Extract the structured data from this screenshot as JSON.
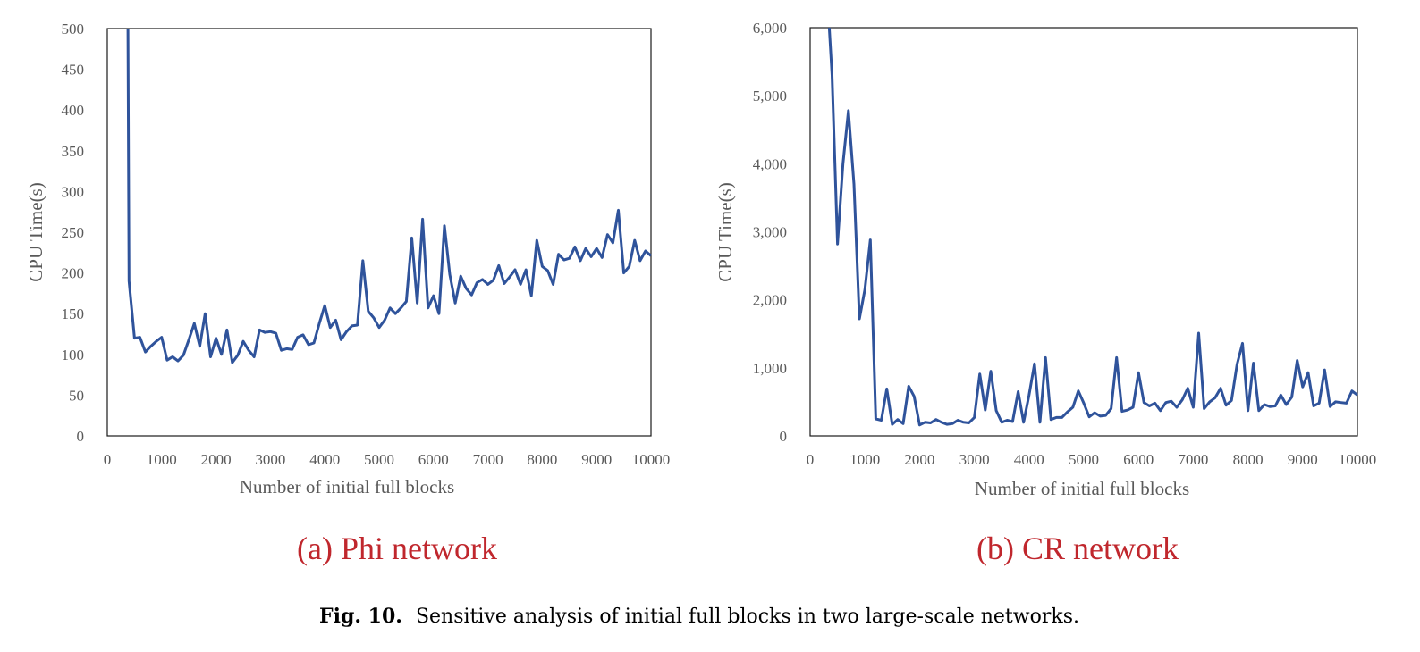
{
  "figure": {
    "caption_label": "Fig. 10.",
    "caption_text": "Sensitive analysis of initial full blocks in two large-scale networks.",
    "colors": {
      "line": "#2f539b",
      "subcaption": "#c0272d",
      "axis_text": "#595959",
      "frame": "#1a1a1a"
    }
  },
  "chart_data": [
    {
      "type": "line",
      "subcaption": "(a) Phi network",
      "xlabel": "Number of initial full blocks",
      "ylabel": "CPU Time(s)",
      "xlim": [
        0,
        10000
      ],
      "ylim": [
        0,
        500
      ],
      "x_ticks": [
        "0",
        "1000",
        "2000",
        "3000",
        "4000",
        "5000",
        "6000",
        "7000",
        "8000",
        "9000",
        "10000"
      ],
      "y_ticks": [
        "0",
        "50",
        "100",
        "150",
        "200",
        "250",
        "300",
        "350",
        "400",
        "450",
        "500"
      ],
      "grid": false,
      "series": [
        {
          "x": [
            380,
            400,
            500,
            600,
            700,
            800,
            900,
            1000,
            1100,
            1200,
            1300,
            1400,
            1500,
            1600,
            1700,
            1800,
            1900,
            2000,
            2100,
            2200,
            2300,
            2400,
            2500,
            2600,
            2700,
            2800,
            2900,
            3000,
            3100,
            3200,
            3300,
            3400,
            3500,
            3600,
            3700,
            3800,
            3900,
            4000,
            4100,
            4200,
            4300,
            4400,
            4500,
            4600,
            4700,
            4800,
            4900,
            5000,
            5100,
            5200,
            5300,
            5400,
            5500,
            5600,
            5700,
            5800,
            5900,
            6000,
            6100,
            6200,
            6300,
            6400,
            6500,
            6600,
            6700,
            6800,
            6900,
            7000,
            7100,
            7200,
            7300,
            7400,
            7500,
            7600,
            7700,
            7800,
            7900,
            8000,
            8100,
            8200,
            8300,
            8400,
            8500,
            8600,
            8700,
            8800,
            8900,
            9000,
            9100,
            9200,
            9300,
            9400,
            9500,
            9600,
            9700,
            9800,
            9900,
            10000
          ],
          "y": [
            500,
            190,
            120,
            121,
            103,
            110,
            116,
            121,
            93,
            97,
            92,
            99,
            118,
            138,
            110,
            150,
            97,
            120,
            100,
            130,
            90,
            99,
            116,
            105,
            97,
            130,
            127,
            128,
            126,
            105,
            107,
            106,
            121,
            124,
            112,
            114,
            138,
            160,
            133,
            142,
            118,
            128,
            135,
            136,
            215,
            153,
            145,
            133,
            142,
            157,
            150,
            157,
            165,
            243,
            163,
            266,
            157,
            172,
            150,
            258,
            198,
            163,
            196,
            181,
            173,
            188,
            192,
            186,
            191,
            209,
            187,
            195,
            204,
            186,
            204,
            172,
            240,
            208,
            203,
            186,
            223,
            216,
            218,
            232,
            215,
            230,
            220,
            230,
            219,
            247,
            237,
            277,
            200,
            208,
            240,
            215,
            227,
            221
          ]
        }
      ]
    },
    {
      "type": "line",
      "subcaption": "(b) CR network",
      "xlabel": "Number of initial full blocks",
      "ylabel": "CPU Time(s)",
      "xlim": [
        0,
        10000
      ],
      "ylim": [
        0,
        6000
      ],
      "x_ticks": [
        "0",
        "1000",
        "2000",
        "3000",
        "4000",
        "5000",
        "6000",
        "7000",
        "8000",
        "9000",
        "10000"
      ],
      "y_ticks": [
        "0",
        "1,000",
        "2,000",
        "3,000",
        "4,000",
        "5,000",
        "6,000"
      ],
      "grid": false,
      "series": [
        {
          "x": [
            350,
            400,
            500,
            600,
            700,
            800,
            900,
            1000,
            1100,
            1200,
            1300,
            1400,
            1500,
            1600,
            1700,
            1800,
            1900,
            2000,
            2100,
            2200,
            2300,
            2400,
            2500,
            2600,
            2700,
            2800,
            2900,
            3000,
            3100,
            3200,
            3300,
            3400,
            3500,
            3600,
            3700,
            3800,
            3900,
            4000,
            4100,
            4200,
            4300,
            4400,
            4500,
            4600,
            4700,
            4800,
            4900,
            5000,
            5100,
            5200,
            5300,
            5400,
            5500,
            5600,
            5700,
            5800,
            5900,
            6000,
            6100,
            6200,
            6300,
            6400,
            6500,
            6600,
            6700,
            6800,
            6900,
            7000,
            7100,
            7200,
            7300,
            7400,
            7500,
            7600,
            7700,
            7800,
            7900,
            8000,
            8100,
            8200,
            8300,
            8400,
            8500,
            8600,
            8700,
            8800,
            8900,
            9000,
            9100,
            9200,
            9300,
            9400,
            9500,
            9600,
            9700,
            9800,
            9900,
            10000
          ],
          "y": [
            6000,
            5300,
            2820,
            4000,
            4780,
            3700,
            1720,
            2150,
            2880,
            250,
            230,
            690,
            170,
            240,
            180,
            730,
            580,
            160,
            200,
            190,
            240,
            200,
            170,
            180,
            230,
            200,
            190,
            270,
            910,
            380,
            950,
            370,
            200,
            230,
            210,
            650,
            200,
            600,
            1060,
            200,
            1150,
            240,
            270,
            270,
            350,
            420,
            660,
            480,
            280,
            340,
            290,
            300,
            400,
            1150,
            360,
            380,
            420,
            930,
            490,
            440,
            480,
            370,
            490,
            510,
            420,
            530,
            700,
            420,
            1510,
            400,
            500,
            560,
            700,
            450,
            520,
            1050,
            1360,
            370,
            1070,
            370,
            460,
            430,
            440,
            600,
            460,
            570,
            1110,
            720,
            930,
            440,
            480,
            970,
            430,
            500,
            490,
            480,
            660,
            600
          ]
        }
      ]
    }
  ]
}
